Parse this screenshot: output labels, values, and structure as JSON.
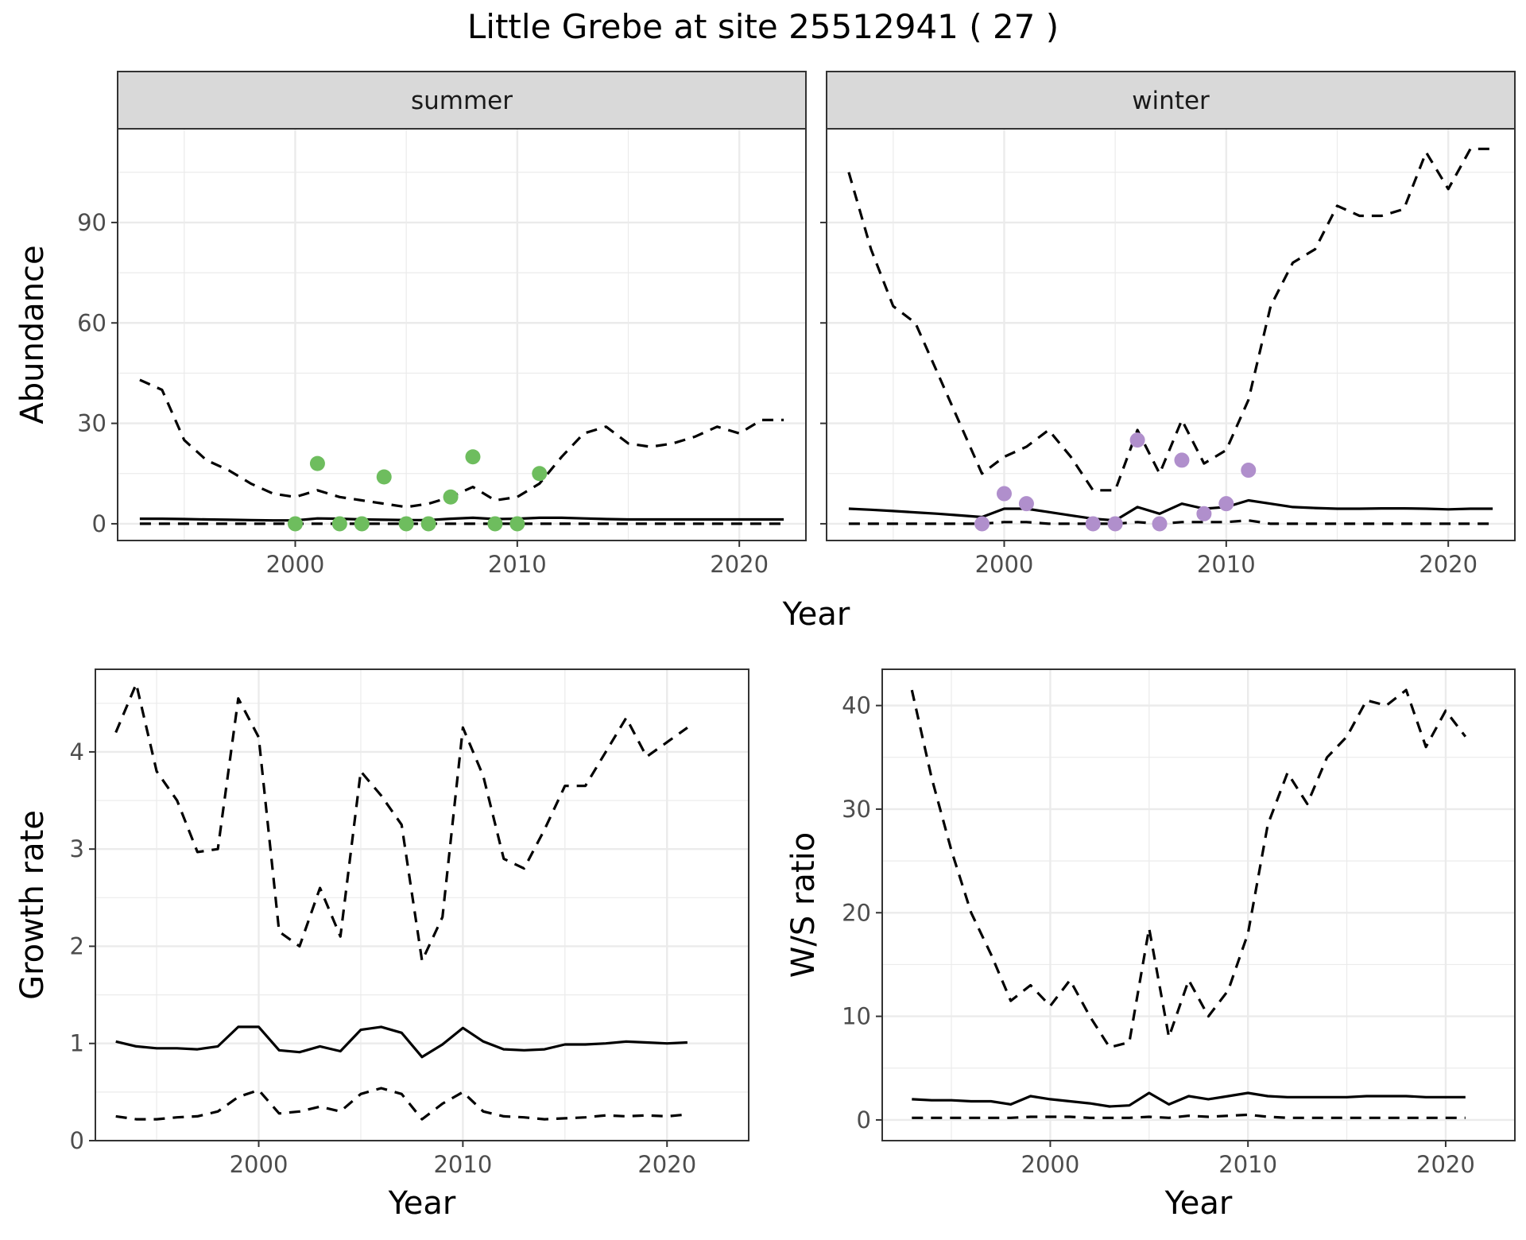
{
  "title": "Little Grebe at site 25512941 ( 27 )",
  "colors": {
    "summer_points": "#6ebd5e",
    "winter_points": "#b08fcc"
  },
  "chart_data": [
    {
      "id": "summer",
      "type": "line",
      "strip": "summer",
      "ylabel": "Abundance",
      "xlabel": "",
      "xlim": [
        1992,
        2023
      ],
      "ylim": [
        -5,
        118
      ],
      "xticks": [
        2000,
        2010,
        2020
      ],
      "yticks": [
        0,
        30,
        60,
        90
      ],
      "grid": true,
      "x": [
        1993,
        1994,
        1995,
        1996,
        1997,
        1998,
        1999,
        2000,
        2001,
        2002,
        2003,
        2004,
        2005,
        2006,
        2007,
        2008,
        2009,
        2010,
        2011,
        2012,
        2013,
        2014,
        2015,
        2016,
        2017,
        2018,
        2019,
        2020,
        2021,
        2022
      ],
      "series": [
        {
          "style": "solid",
          "values": [
            1.5,
            1.5,
            1.4,
            1.3,
            1.2,
            1.1,
            1.0,
            1.0,
            1.6,
            1.5,
            1.3,
            1.2,
            1.1,
            1.1,
            1.5,
            1.8,
            1.4,
            1.5,
            1.8,
            1.8,
            1.6,
            1.4,
            1.3,
            1.3,
            1.3,
            1.3,
            1.3,
            1.3,
            1.3,
            1.3
          ]
        },
        {
          "style": "dashed",
          "values": [
            43,
            40,
            25,
            19,
            16,
            12,
            9,
            8,
            10,
            8,
            7,
            6,
            5,
            6,
            8,
            11,
            7,
            8,
            12,
            20,
            27,
            29,
            24,
            23,
            24,
            26,
            29,
            27,
            31,
            31
          ]
        },
        {
          "style": "dashed",
          "values": [
            0,
            0,
            0,
            0,
            0,
            0,
            0,
            0,
            0,
            0,
            0,
            0,
            0,
            0,
            0,
            0,
            0,
            0,
            0,
            0,
            0,
            0,
            0,
            0,
            0,
            0,
            0,
            0,
            0,
            0
          ]
        }
      ],
      "points": [
        {
          "x": 2000,
          "y": 0
        },
        {
          "x": 2001,
          "y": 18
        },
        {
          "x": 2002,
          "y": 0
        },
        {
          "x": 2003,
          "y": 0
        },
        {
          "x": 2004,
          "y": 14
        },
        {
          "x": 2005,
          "y": 0
        },
        {
          "x": 2006,
          "y": 0
        },
        {
          "x": 2007,
          "y": 8
        },
        {
          "x": 2008,
          "y": 20
        },
        {
          "x": 2009,
          "y": 0
        },
        {
          "x": 2010,
          "y": 0
        },
        {
          "x": 2011,
          "y": 15
        }
      ]
    },
    {
      "id": "winter",
      "type": "line",
      "strip": "winter",
      "ylabel": "",
      "xlabel": "",
      "xlim": [
        1992,
        2023
      ],
      "ylim": [
        -5,
        118
      ],
      "xticks": [
        2000,
        2010,
        2020
      ],
      "yticks": [
        0,
        30,
        60,
        90
      ],
      "grid": true,
      "x": [
        1993,
        1994,
        1995,
        1996,
        1997,
        1998,
        1999,
        2000,
        2001,
        2002,
        2003,
        2004,
        2005,
        2006,
        2007,
        2008,
        2009,
        2010,
        2011,
        2012,
        2013,
        2014,
        2015,
        2016,
        2017,
        2018,
        2019,
        2020,
        2021,
        2022
      ],
      "series": [
        {
          "style": "solid",
          "values": [
            4.5,
            4.2,
            3.8,
            3.4,
            3.0,
            2.5,
            2.0,
            4.5,
            4.5,
            3.5,
            2.5,
            1.5,
            1.0,
            5.0,
            3.0,
            6.0,
            4.5,
            5.0,
            7.0,
            6.0,
            5.0,
            4.7,
            4.5,
            4.5,
            4.6,
            4.6,
            4.5,
            4.3,
            4.5,
            4.5
          ]
        },
        {
          "style": "dashed",
          "values": [
            105,
            82,
            65,
            60,
            45,
            30,
            15,
            20,
            23,
            28,
            20,
            10,
            10,
            28,
            15,
            31,
            18,
            22,
            37,
            65,
            78,
            82,
            95,
            92,
            92,
            94,
            111,
            100,
            112,
            112
          ]
        },
        {
          "style": "dashed",
          "values": [
            0,
            0,
            0,
            0,
            0,
            0,
            0,
            0.5,
            0.5,
            0,
            0,
            0,
            0,
            0.5,
            0,
            0.5,
            0.5,
            0.5,
            1,
            0,
            0,
            0,
            0,
            0,
            0,
            0,
            0,
            0,
            0,
            0
          ]
        }
      ],
      "points": [
        {
          "x": 1999,
          "y": 0
        },
        {
          "x": 2000,
          "y": 9
        },
        {
          "x": 2001,
          "y": 6
        },
        {
          "x": 2004,
          "y": 0
        },
        {
          "x": 2005,
          "y": 0
        },
        {
          "x": 2006,
          "y": 25
        },
        {
          "x": 2007,
          "y": 0
        },
        {
          "x": 2008,
          "y": 19
        },
        {
          "x": 2009,
          "y": 3
        },
        {
          "x": 2010,
          "y": 6
        },
        {
          "x": 2011,
          "y": 16
        }
      ]
    },
    {
      "id": "growth",
      "type": "line",
      "ylabel": "Growth rate",
      "xlabel": "Year",
      "xlim": [
        1992,
        2024
      ],
      "ylim": [
        0,
        4.85
      ],
      "xticks": [
        2000,
        2010,
        2020
      ],
      "yticks": [
        0,
        1,
        2,
        3,
        4
      ],
      "grid": true,
      "x": [
        1993,
        1994,
        1995,
        1996,
        1997,
        1998,
        1999,
        2000,
        2001,
        2002,
        2003,
        2004,
        2005,
        2006,
        2007,
        2008,
        2009,
        2010,
        2011,
        2012,
        2013,
        2014,
        2015,
        2016,
        2017,
        2018,
        2019,
        2020,
        2021
      ],
      "series": [
        {
          "style": "solid",
          "values": [
            1.02,
            0.97,
            0.95,
            0.95,
            0.94,
            0.97,
            1.17,
            1.17,
            0.93,
            0.91,
            0.97,
            0.92,
            1.14,
            1.17,
            1.11,
            0.86,
            0.99,
            1.16,
            1.02,
            0.94,
            0.93,
            0.94,
            0.99,
            0.99,
            1.0,
            1.02,
            1.01,
            1.0,
            1.01
          ]
        },
        {
          "style": "dashed",
          "values": [
            4.2,
            4.7,
            3.8,
            3.5,
            2.97,
            3.0,
            4.55,
            4.15,
            2.15,
            2.0,
            2.6,
            2.1,
            3.8,
            3.55,
            3.25,
            1.85,
            2.3,
            4.25,
            3.75,
            2.9,
            2.8,
            3.2,
            3.65,
            3.65,
            4.0,
            4.35,
            3.95,
            4.1,
            4.25
          ]
        },
        {
          "style": "dashed",
          "values": [
            0.25,
            0.22,
            0.22,
            0.24,
            0.25,
            0.3,
            0.45,
            0.52,
            0.28,
            0.3,
            0.35,
            0.3,
            0.48,
            0.54,
            0.48,
            0.22,
            0.38,
            0.5,
            0.3,
            0.25,
            0.24,
            0.22,
            0.23,
            0.24,
            0.26,
            0.25,
            0.26,
            0.25,
            0.27
          ]
        }
      ]
    },
    {
      "id": "ratio",
      "type": "line",
      "ylabel": "W/S ratio",
      "xlabel": "Year",
      "xlim": [
        1991.5,
        2023.5
      ],
      "ylim": [
        -2,
        43.5
      ],
      "xticks": [
        2000,
        2010,
        2020
      ],
      "yticks": [
        0,
        10,
        20,
        30,
        40
      ],
      "grid": true,
      "x": [
        1993,
        1994,
        1995,
        1996,
        1997,
        1998,
        1999,
        2000,
        2001,
        2002,
        2003,
        2004,
        2005,
        2006,
        2007,
        2008,
        2009,
        2010,
        2011,
        2012,
        2013,
        2014,
        2015,
        2016,
        2017,
        2018,
        2019,
        2020,
        2021
      ],
      "series": [
        {
          "style": "solid",
          "values": [
            2.0,
            1.9,
            1.9,
            1.8,
            1.8,
            1.5,
            2.3,
            2.0,
            1.8,
            1.6,
            1.3,
            1.4,
            2.6,
            1.5,
            2.3,
            2.0,
            2.3,
            2.6,
            2.3,
            2.2,
            2.2,
            2.2,
            2.2,
            2.3,
            2.3,
            2.3,
            2.2,
            2.2,
            2.2
          ]
        },
        {
          "style": "dashed",
          "values": [
            41.5,
            33,
            26,
            20,
            16,
            11.5,
            13,
            11,
            13.5,
            10,
            7,
            7.5,
            18.5,
            8,
            13.5,
            10,
            12.5,
            18,
            28.5,
            33.5,
            30.5,
            35,
            37,
            40.5,
            40,
            41.5,
            36,
            39.5,
            37
          ]
        },
        {
          "style": "dashed",
          "values": [
            0.2,
            0.2,
            0.2,
            0.2,
            0.2,
            0.2,
            0.3,
            0.3,
            0.3,
            0.2,
            0.2,
            0.2,
            0.3,
            0.2,
            0.4,
            0.3,
            0.4,
            0.5,
            0.3,
            0.2,
            0.2,
            0.2,
            0.2,
            0.2,
            0.2,
            0.2,
            0.2,
            0.2,
            0.2
          ]
        }
      ]
    }
  ],
  "shared_xlabel_top": "Year"
}
